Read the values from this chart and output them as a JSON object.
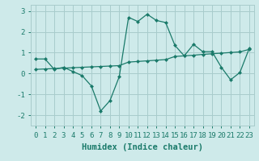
{
  "xlabel": "Humidex (Indice chaleur)",
  "background_color": "#ceeaea",
  "grid_color": "#a8cccc",
  "line_color": "#1a7a6a",
  "x_humidex": [
    0,
    1,
    2,
    3,
    4,
    5,
    6,
    7,
    8,
    9,
    10,
    11,
    12,
    13,
    14,
    15,
    16,
    17,
    18,
    19,
    20,
    21,
    22,
    23
  ],
  "y_curve1": [
    0.7,
    0.7,
    0.2,
    0.3,
    0.1,
    -0.1,
    -0.6,
    -1.8,
    -1.3,
    -0.15,
    2.7,
    2.5,
    2.85,
    2.55,
    2.45,
    1.35,
    0.85,
    1.4,
    1.05,
    1.05,
    0.3,
    -0.3,
    0.05,
    1.2
  ],
  "y_line2": [
    0.2,
    0.22,
    0.24,
    0.26,
    0.28,
    0.3,
    0.32,
    0.34,
    0.36,
    0.38,
    0.55,
    0.58,
    0.61,
    0.64,
    0.67,
    0.82,
    0.85,
    0.88,
    0.92,
    0.95,
    0.98,
    1.01,
    1.04,
    1.16
  ],
  "ylim": [
    -2.5,
    3.3
  ],
  "xlim": [
    -0.5,
    23.5
  ],
  "yticks": [
    -2,
    -1,
    0,
    1,
    2,
    3
  ],
  "xticks": [
    0,
    1,
    2,
    3,
    4,
    5,
    6,
    7,
    8,
    9,
    10,
    11,
    12,
    13,
    14,
    15,
    16,
    17,
    18,
    19,
    20,
    21,
    22,
    23
  ],
  "tick_fontsize": 6.5,
  "xlabel_fontsize": 7.5
}
